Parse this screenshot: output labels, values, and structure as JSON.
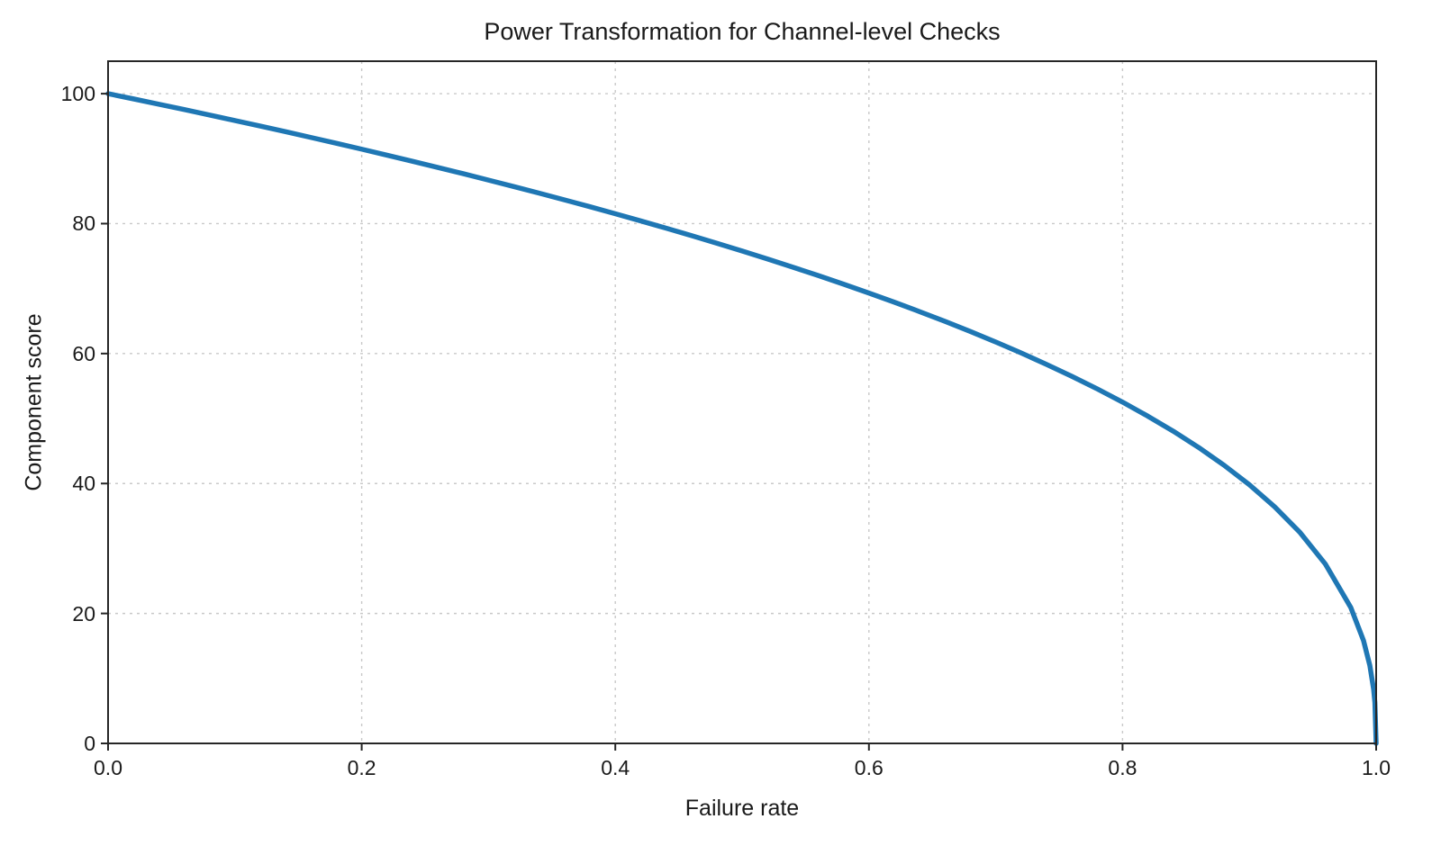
{
  "chart_data": {
    "type": "line",
    "title": "Power Transformation for Channel-level Checks",
    "xlabel": "Failure rate",
    "ylabel": "Component score",
    "xlim": [
      0,
      1
    ],
    "ylim": [
      0,
      105
    ],
    "grid": true,
    "legend": "none",
    "line_color": "#1f77b4",
    "grid_color": "#c9c9c9",
    "axis_color": "#262626",
    "x_ticks": [
      0.0,
      0.2,
      0.4,
      0.6,
      0.8,
      1.0
    ],
    "x_tick_labels": [
      "0.0",
      "0.2",
      "0.4",
      "0.6",
      "0.8",
      "1.0"
    ],
    "y_ticks": [
      0,
      20,
      40,
      60,
      80,
      100
    ],
    "y_tick_labels": [
      "0",
      "20",
      "40",
      "60",
      "80",
      "100"
    ],
    "series": [
      {
        "name": "component_score",
        "x": [
          0.0,
          0.02,
          0.04,
          0.06,
          0.08,
          0.1,
          0.12,
          0.14,
          0.16,
          0.18,
          0.2,
          0.22,
          0.24,
          0.26,
          0.28,
          0.3,
          0.32,
          0.34,
          0.36,
          0.38,
          0.4,
          0.42,
          0.44,
          0.46,
          0.48,
          0.5,
          0.52,
          0.54,
          0.56,
          0.58,
          0.6,
          0.62,
          0.64,
          0.66,
          0.68,
          0.7,
          0.72,
          0.74,
          0.76,
          0.78,
          0.8,
          0.82,
          0.84,
          0.86,
          0.88,
          0.9,
          0.92,
          0.94,
          0.96,
          0.98,
          0.99,
          0.995,
          0.998,
          0.999,
          1.0
        ],
        "y": [
          100.0,
          99.2,
          98.38,
          97.56,
          96.72,
          95.87,
          95.02,
          94.15,
          93.26,
          92.37,
          91.46,
          90.54,
          89.6,
          88.65,
          87.69,
          86.7,
          85.7,
          84.69,
          83.65,
          82.6,
          81.52,
          80.42,
          79.3,
          78.16,
          76.98,
          75.79,
          74.56,
          73.3,
          72.01,
          70.68,
          69.31,
          67.91,
          66.45,
          64.95,
          63.4,
          61.78,
          60.1,
          58.34,
          56.5,
          54.57,
          52.53,
          50.36,
          48.05,
          45.55,
          42.82,
          39.81,
          36.41,
          32.45,
          27.59,
          20.91,
          15.85,
          12.01,
          8.33,
          6.31,
          0.0
        ]
      }
    ]
  }
}
